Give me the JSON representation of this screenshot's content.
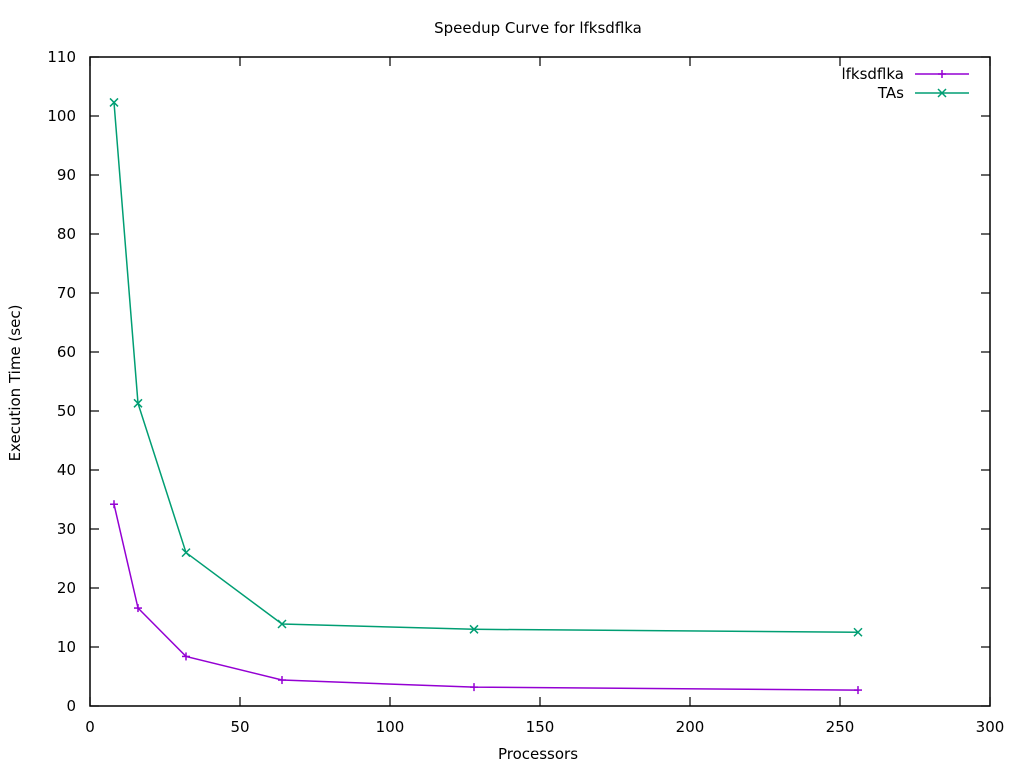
{
  "chart_data": {
    "type": "line",
    "title": "Speedup Curve for lfksdflka",
    "xlabel": "Processors",
    "ylabel": "Execution Time (sec)",
    "xlim": [
      0,
      300
    ],
    "ylim": [
      0,
      110
    ],
    "x_ticks": [
      0,
      50,
      100,
      150,
      200,
      250,
      300
    ],
    "y_ticks": [
      0,
      10,
      20,
      30,
      40,
      50,
      60,
      70,
      80,
      90,
      100,
      110
    ],
    "x_tick_labels": [
      "0",
      "50",
      "100",
      "150",
      "200",
      "250",
      "300"
    ],
    "y_tick_labels": [
      "0",
      "10",
      "20",
      "30",
      "40",
      "50",
      "60",
      "70",
      "80",
      "90",
      "100",
      "110"
    ],
    "grid": false,
    "legend_position": "top-right",
    "series": [
      {
        "name": "lfksdflka",
        "color": "#9400d3",
        "marker": "plus",
        "x": [
          8,
          16,
          32,
          64,
          128,
          256
        ],
        "y": [
          34.2,
          16.6,
          8.4,
          4.4,
          3.2,
          2.7
        ]
      },
      {
        "name": "TAs",
        "color": "#009e73",
        "marker": "cross",
        "x": [
          8,
          16,
          32,
          64,
          128,
          256
        ],
        "y": [
          102.3,
          51.3,
          26.0,
          13.9,
          13.0,
          12.5
        ]
      }
    ]
  }
}
